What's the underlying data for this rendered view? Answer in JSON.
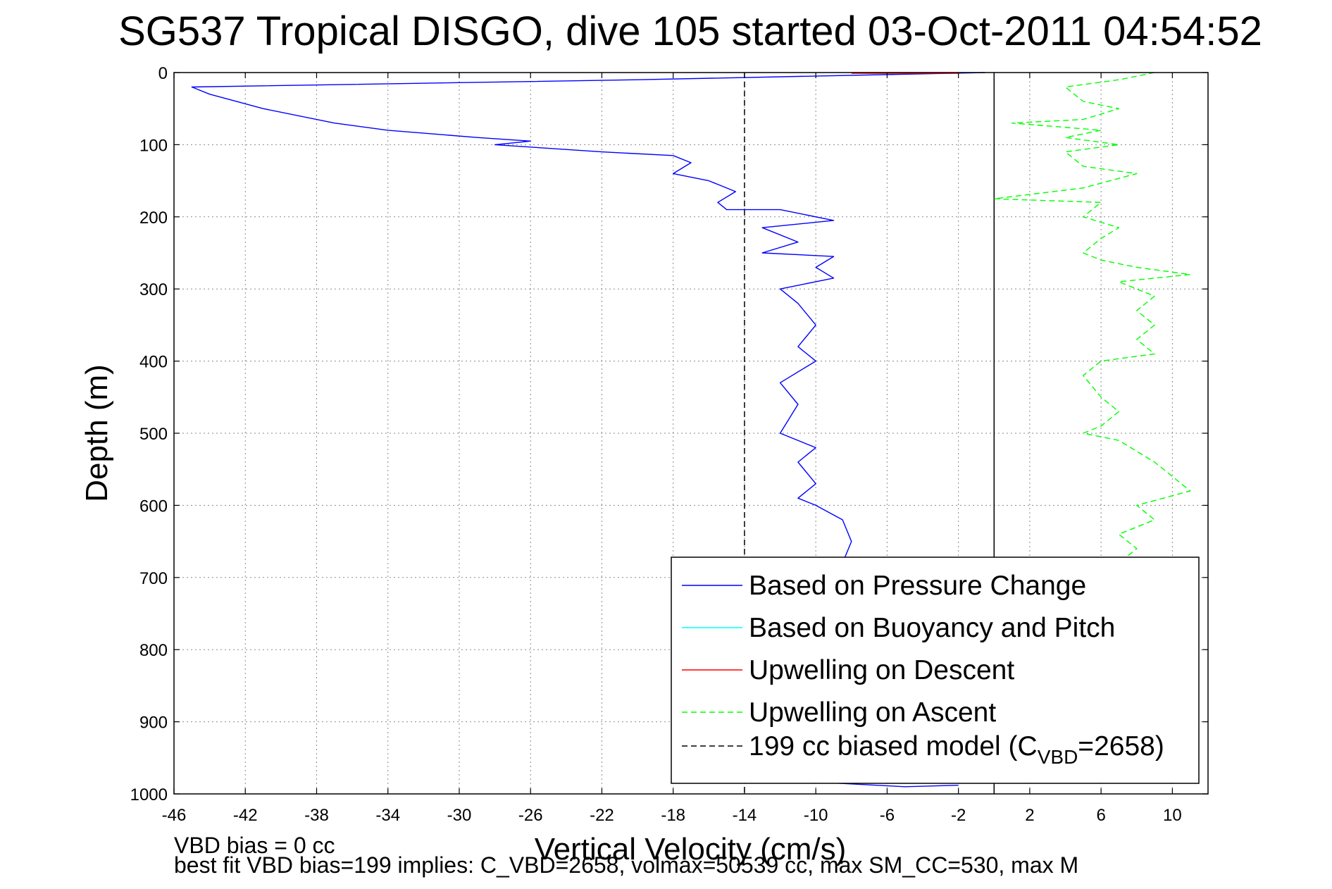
{
  "chart_data": {
    "type": "line",
    "title": "SG537 Tropical DISGO, dive 105 started 03-Oct-2011 04:54:52",
    "xlabel": "Vertical Velocity (cm/s)",
    "ylabel": "Depth (m)",
    "xlim": [
      -46,
      12
    ],
    "ylim": [
      0,
      1000
    ],
    "y_reversed": true,
    "x_ticks": [
      -46,
      -42,
      -38,
      -34,
      -30,
      -26,
      -22,
      -18,
      -14,
      -10,
      -6,
      -2,
      2,
      6,
      10
    ],
    "y_ticks": [
      0,
      100,
      200,
      300,
      400,
      500,
      600,
      700,
      800,
      900,
      1000
    ],
    "grid": true,
    "legend_position": "bottom-right",
    "reference_lines": [
      {
        "x": -14,
        "style": "dashed",
        "color": "#000000"
      },
      {
        "x": 0,
        "style": "solid",
        "color": "#000000"
      }
    ],
    "series": [
      {
        "name": "Based on Pressure Change",
        "color": "#0000ff",
        "style": "solid",
        "segments": [
          {
            "x": [
              -0.5,
              -20,
              -45,
              -44,
              -41,
              -37,
              -34,
              -29,
              -26,
              -28,
              -22,
              -18,
              -17,
              -18,
              -16,
              -14.5,
              -15.5,
              -15,
              -12,
              -9,
              -13,
              -11,
              -13,
              -9,
              -10,
              -9,
              -12,
              -11,
              -10,
              -11,
              -10,
              -12,
              -11,
              -12,
              -10,
              -11,
              -10,
              -11,
              -10,
              -8.5,
              -8,
              -8.5
            ],
            "y": [
              0,
              10,
              20,
              30,
              50,
              70,
              80,
              90,
              95,
              100,
              110,
              115,
              125,
              140,
              150,
              165,
              180,
              190,
              190,
              205,
              215,
              235,
              250,
              255,
              270,
              285,
              300,
              320,
              350,
              380,
              400,
              430,
              460,
              500,
              520,
              540,
              570,
              590,
              600,
              620,
              650,
              680
            ]
          },
          {
            "x": [
              -9,
              -5,
              -2
            ],
            "y": [
              985,
              990,
              988
            ]
          }
        ]
      },
      {
        "name": "Based on Buoyancy and Pitch",
        "color": "#00ffff",
        "style": "solid",
        "segments": []
      },
      {
        "name": "Upwelling on Descent",
        "color": "#ff0000",
        "style": "solid",
        "segments": [
          {
            "x": [
              -8,
              -2
            ],
            "y": [
              1,
              1
            ]
          }
        ]
      },
      {
        "name": "Upwelling on Ascent",
        "color": "#00ff00",
        "style": "dashed",
        "segments": [
          {
            "x": [
              9,
              7,
              4,
              5,
              7,
              5,
              1,
              6,
              4,
              7,
              4,
              5,
              8,
              5,
              0,
              6,
              5,
              7,
              6,
              5,
              6,
              8,
              11,
              7,
              9,
              8,
              9,
              8,
              9,
              6,
              5,
              6,
              7,
              6,
              5,
              7,
              9,
              10,
              11,
              8,
              9,
              7,
              8,
              7
            ],
            "y": [
              0,
              10,
              20,
              40,
              50,
              65,
              70,
              80,
              90,
              100,
              110,
              130,
              140,
              160,
              175,
              180,
              200,
              215,
              230,
              250,
              260,
              270,
              280,
              290,
              310,
              330,
              350,
              370,
              390,
              400,
              420,
              450,
              470,
              490,
              500,
              510,
              540,
              560,
              580,
              600,
              620,
              640,
              660,
              680
            ]
          }
        ]
      },
      {
        "name": "199 cc biased model (CVBD=2658)",
        "color": "#000000",
        "style": "dashed",
        "segments": []
      }
    ]
  },
  "legend": {
    "items": [
      {
        "label": "Based on Pressure Change",
        "color": "#0000ff",
        "dash": ""
      },
      {
        "label": "Based on Buoyancy and Pitch",
        "color": "#00ffff",
        "dash": ""
      },
      {
        "label": "Upwelling on Descent",
        "color": "#ff0000",
        "dash": ""
      },
      {
        "label": "Upwelling on Ascent",
        "color": "#00ff00",
        "dash": "8,5"
      },
      {
        "label": "199 cc biased model (C",
        "sub": "VBD",
        "suffix": "=2658)",
        "color": "#000000",
        "dash": "8,5"
      }
    ]
  },
  "footer": {
    "line1": "VBD bias = 0 cc",
    "line2": "best fit VBD bias=199 implies: C_VBD=2658, volmax=50539 cc, max SM_CC=530, max M"
  }
}
